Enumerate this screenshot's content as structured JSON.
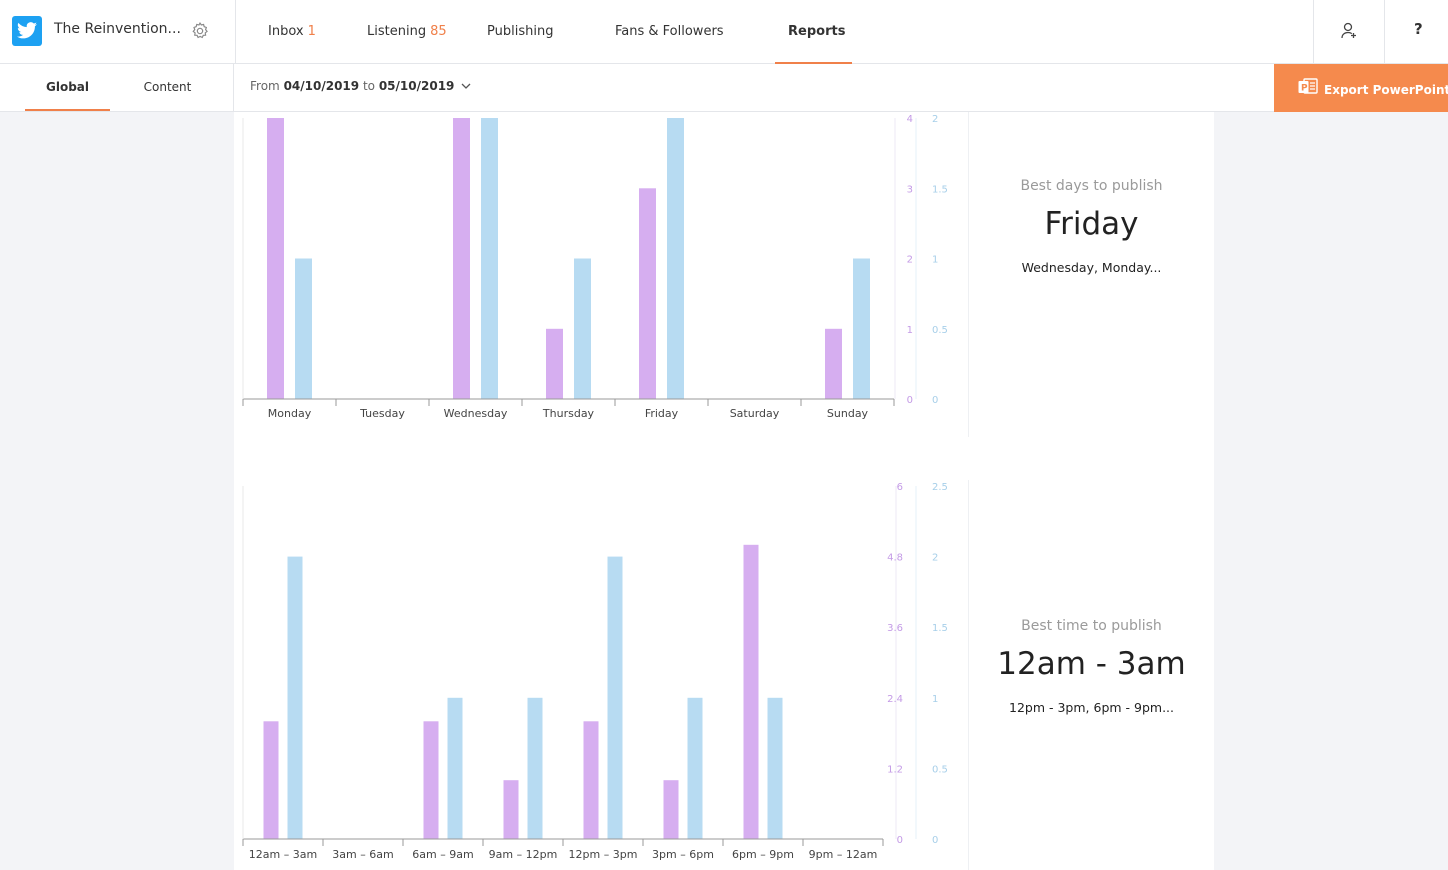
{
  "header": {
    "account_name": "The Reinvention...",
    "nav": [
      {
        "label": "Inbox",
        "count": "1"
      },
      {
        "label": "Listening",
        "count": "85"
      },
      {
        "label": "Publishing",
        "count": ""
      },
      {
        "label": "Fans & Followers",
        "count": ""
      },
      {
        "label": "Reports",
        "count": ""
      }
    ],
    "active_nav": "Reports",
    "help_label": "?",
    "icons": [
      "twitter-icon",
      "gear-icon",
      "add-user-icon"
    ]
  },
  "subnav": {
    "tabs": [
      "Global",
      "Content"
    ],
    "active_tab": "Global",
    "date_prefix": "From",
    "date_from": "04/10/2019",
    "date_sep": "to",
    "date_to": "05/10/2019",
    "export_label": "Export PowerPoint"
  },
  "best_days": {
    "title": "Best days to publish",
    "value": "Friday",
    "others": "Wednesday, Monday..."
  },
  "best_time": {
    "title": "Best time to publish",
    "value": "12am - 3am",
    "others": "12pm - 3pm, 6pm - 9pm..."
  },
  "colors": {
    "purple": "#d6aef0",
    "blue": "#b7dbf2",
    "accent": "#f58a4d",
    "twitter": "#1da1f2"
  },
  "chart_data": [
    {
      "type": "bar",
      "categories": [
        "Monday",
        "Tuesday",
        "Wednesday",
        "Thursday",
        "Friday",
        "Saturday",
        "Sunday"
      ],
      "series": [
        {
          "values": [
            4,
            0,
            4,
            1,
            3,
            0,
            1
          ],
          "color": "#d6aef0",
          "axis": "left"
        },
        {
          "values": [
            1,
            0,
            2,
            1,
            2,
            0,
            1
          ],
          "color": "#b7dbf2",
          "axis": "right"
        }
      ],
      "left_axis": {
        "ticks": [
          "0",
          "1",
          "2",
          "3",
          "4"
        ],
        "ylim": [
          0,
          4
        ]
      },
      "right_axis": {
        "ticks": [
          "0",
          "0.5",
          "1",
          "1.5",
          "2"
        ],
        "ylim": [
          0,
          2
        ]
      }
    },
    {
      "type": "bar",
      "categories": [
        "12am – 3am",
        "3am – 6am",
        "6am – 9am",
        "9am – 12pm",
        "12pm – 3pm",
        "3pm – 6pm",
        "6pm – 9pm",
        "9pm – 12am"
      ],
      "series": [
        {
          "values": [
            2,
            0,
            2,
            1,
            2,
            1,
            5,
            0
          ],
          "color": "#d6aef0",
          "axis": "left"
        },
        {
          "values": [
            2,
            0,
            1,
            1,
            2,
            1,
            1,
            0
          ],
          "color": "#b7dbf2",
          "axis": "right"
        }
      ],
      "left_axis": {
        "ticks": [
          "0",
          "1.2",
          "2.4",
          "3.6",
          "4.8",
          "6"
        ],
        "ylim": [
          0,
          6
        ]
      },
      "right_axis": {
        "ticks": [
          "0",
          "0.5",
          "1",
          "1.5",
          "2",
          "2.5"
        ],
        "ylim": [
          0,
          2.5
        ]
      }
    }
  ]
}
